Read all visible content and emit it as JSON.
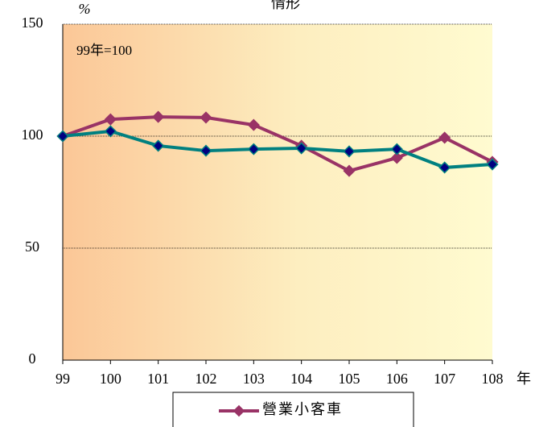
{
  "chart_data": {
    "type": "line",
    "title": "情形",
    "y_label": "%",
    "x_label": "年",
    "annotation": "99年=100",
    "categories": [
      "99",
      "100",
      "101",
      "102",
      "103",
      "104",
      "105",
      "106",
      "107",
      "108"
    ],
    "series": [
      {
        "name": "營業小客車",
        "color": "#993366",
        "marker_color": "#993366",
        "values": [
          100,
          107.5,
          108.6,
          108.3,
          105,
          95.7,
          84.5,
          90.3,
          99.3,
          88.5
        ]
      },
      {
        "color": "#008080",
        "marker_color": "#000080",
        "values": [
          100,
          102.2,
          95.7,
          93.5,
          94.2,
          94.6,
          93.2,
          94.2,
          86,
          87.4
        ]
      }
    ],
    "ylim": [
      0,
      150
    ],
    "yticks": [
      0,
      50,
      100,
      150
    ],
    "grid": true
  }
}
